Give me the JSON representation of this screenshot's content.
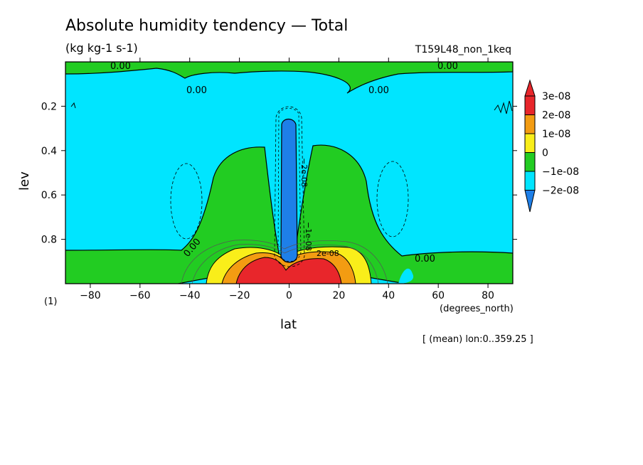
{
  "title": "Absolute humidity tendency — Total",
  "units": "(kg kg-1 s-1)",
  "experiment": "T159L48_non_1keq",
  "subtitle_note": "[ (mean) lon:0..359.25 ]",
  "lev_unit_note": "(1)",
  "chart_data": {
    "type": "heatmap",
    "xlabel": "lat",
    "x_unit": "(degrees_north)",
    "ylabel": "lev",
    "xlim": [
      -90,
      90
    ],
    "ylim": [
      1.0,
      0.0
    ],
    "x_ticks": [
      -80,
      -60,
      -40,
      -20,
      0,
      20,
      40,
      60,
      80
    ],
    "y_ticks": [
      0.2,
      0.4,
      0.6,
      0.8
    ],
    "colorbar": {
      "levels": [
        "3e-08",
        "2e-08",
        "1e-08",
        "0",
        "−1e-08",
        "−2e-08"
      ],
      "colors": [
        "#e8262b",
        "#f39c12",
        "#f9ee1a",
        "#22cc22",
        "#00e5ff",
        "#1e7fe8"
      ]
    },
    "contour_labels": [
      "0.00",
      "0.00",
      "0.00",
      "0.00",
      "0.00",
      "0.00",
      "−2e-08",
      "−1e-08",
      "2e-08"
    ]
  },
  "colors": {
    "neg1": "#00e5ff",
    "neg2": "#1e7fe8",
    "zero": "#22cc22",
    "pos1": "#f9ee1a",
    "pos2": "#f39c12",
    "pos3": "#e8262b"
  }
}
